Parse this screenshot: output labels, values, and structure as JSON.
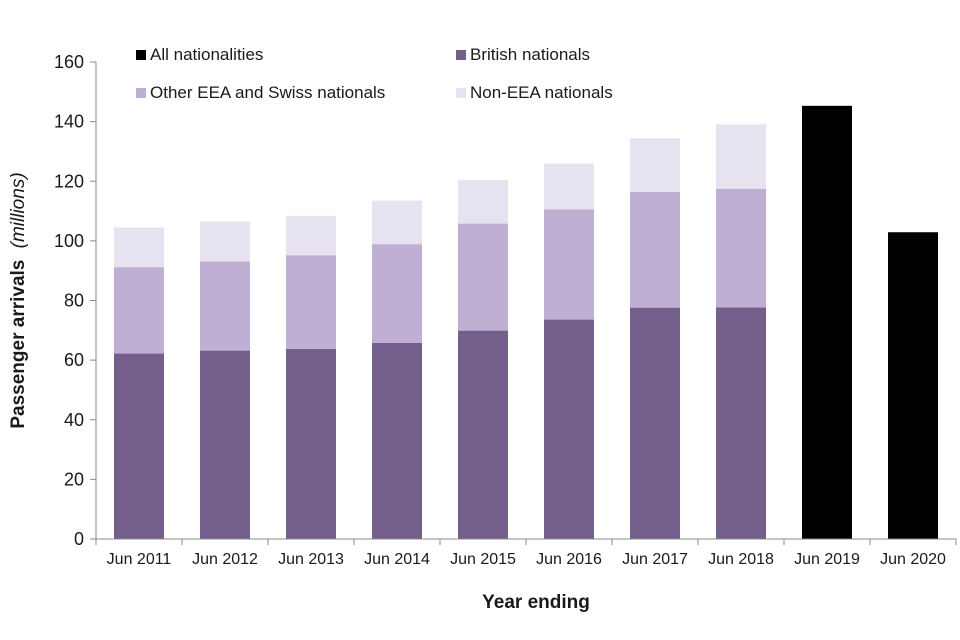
{
  "chart_data": {
    "type": "bar",
    "stacked": true,
    "categories": [
      "Jun 2011",
      "Jun 2012",
      "Jun 2013",
      "Jun 2014",
      "Jun 2015",
      "Jun 2016",
      "Jun 2017",
      "Jun 2018",
      "Jun 2019",
      "Jun 2020"
    ],
    "series": [
      {
        "name": "All nationalities",
        "color": "#000000",
        "values": [
          null,
          null,
          null,
          null,
          null,
          null,
          null,
          null,
          145.3,
          102.9
        ]
      },
      {
        "name": "British nationals",
        "color": "#735e8c",
        "values": [
          62.2,
          63.2,
          63.8,
          65.8,
          69.9,
          73.6,
          77.6,
          77.7,
          null,
          null
        ]
      },
      {
        "name": "Other EEA and Swiss nationals",
        "color": "#bfafd2",
        "values": [
          29.0,
          29.9,
          31.4,
          33.1,
          35.9,
          37.0,
          38.8,
          39.8,
          null,
          null
        ]
      },
      {
        "name": "Non-EEA nationals",
        "color": "#e7e2ef",
        "values": [
          13.3,
          13.4,
          13.2,
          14.6,
          14.6,
          15.3,
          18.0,
          21.6,
          null,
          null
        ]
      }
    ],
    "legend_order": [
      "All nationalities",
      "British nationals",
      "Other EEA and Swiss nationals",
      "Non-EEA nationals"
    ],
    "xlabel": "Year ending",
    "ylabel_main": "Passenger arrivals",
    "ylabel_unit": "(millions)",
    "ylim": [
      0,
      160
    ],
    "yticks": [
      0,
      20,
      40,
      60,
      80,
      100,
      120,
      140,
      160
    ],
    "grid": false,
    "legend_position": "top"
  }
}
